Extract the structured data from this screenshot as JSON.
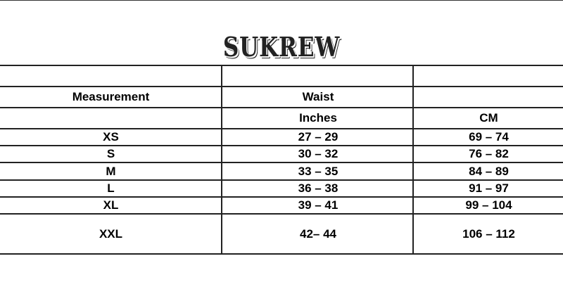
{
  "brand": "SUKREW",
  "table": {
    "header1": [
      "Measurement",
      "Waist",
      ""
    ],
    "header2": [
      "",
      "Inches",
      "CM"
    ],
    "rows": [
      [
        "XS",
        "27 – 29",
        "69 – 74"
      ],
      [
        "S",
        "30 – 32",
        "76 – 82"
      ],
      [
        "M",
        "33 – 35",
        "84 – 89"
      ],
      [
        "L",
        "36 – 38",
        "91 – 97"
      ],
      [
        "XL",
        "39 – 41",
        "99 – 104"
      ],
      [
        "XXL",
        "42– 44",
        "106 – 112"
      ]
    ]
  }
}
